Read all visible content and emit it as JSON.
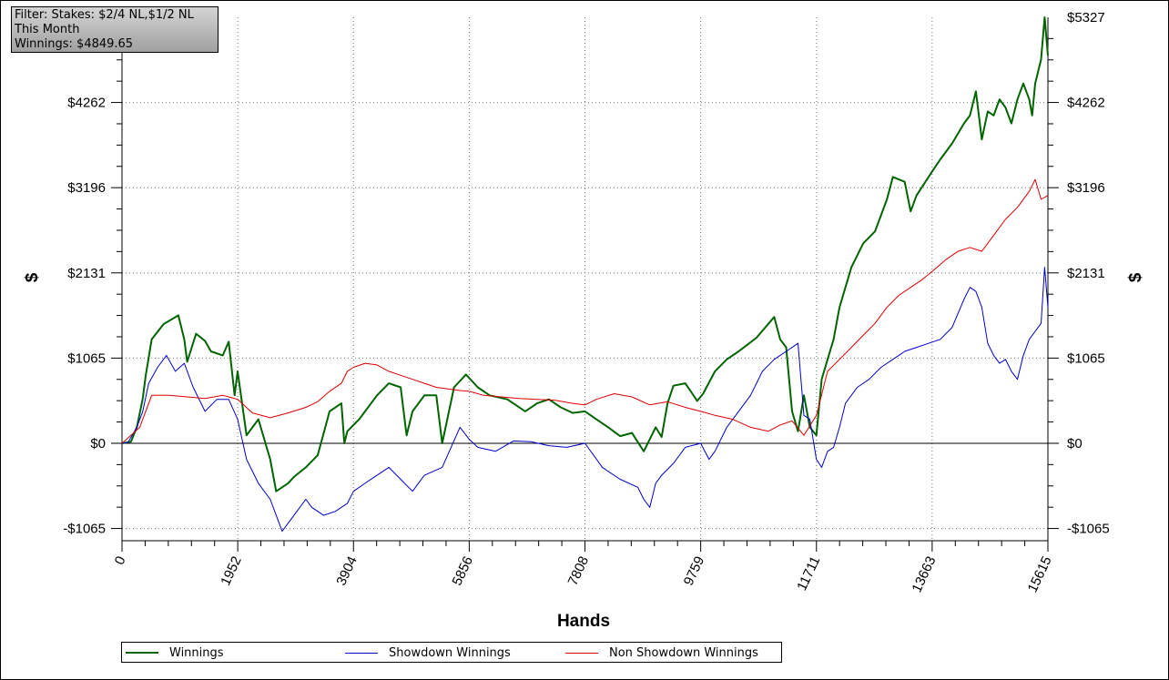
{
  "info_box": {
    "filter": "Filter: Stakes: $2/4 NL,$1/2 NL",
    "period": "This Month",
    "winnings": "Winnings: $4849.65"
  },
  "chart_data": {
    "type": "line",
    "xlabel": "Hands",
    "ylabel": "$",
    "ylabel_right": "$",
    "xlim": [
      0,
      15615
    ],
    "ylim": [
      -1065,
      5327
    ],
    "x_ticks": [
      0,
      1952,
      3904,
      5856,
      7808,
      9759,
      11711,
      13663,
      15615
    ],
    "y_ticks": [
      -1065,
      0,
      1065,
      2131,
      3196,
      4262,
      5327
    ],
    "y_tick_labels": [
      "-$1065",
      "$0",
      "$1065",
      "$2131",
      "$3196",
      "$4262",
      "$5327"
    ],
    "grid": true,
    "legend_position": "bottom",
    "series": [
      {
        "name": "Winnings",
        "color": "#006400",
        "x": [
          0,
          150,
          250,
          350,
          400,
          500,
          700,
          950,
          1050,
          1100,
          1250,
          1400,
          1500,
          1700,
          1800,
          1900,
          1950,
          2100,
          2300,
          2500,
          2600,
          2800,
          2900,
          3100,
          3300,
          3500,
          3700,
          3750,
          3800,
          4000,
          4300,
          4500,
          4700,
          4800,
          4900,
          5100,
          5300,
          5400,
          5600,
          5800,
          6000,
          6200,
          6500,
          6800,
          7000,
          7200,
          7400,
          7600,
          7808,
          8000,
          8200,
          8400,
          8600,
          8800,
          9000,
          9100,
          9200,
          9300,
          9500,
          9700,
          9800,
          10000,
          10200,
          10400,
          10700,
          11000,
          11100,
          11200,
          11300,
          11400,
          11500,
          11600,
          11711,
          11800,
          11900,
          12000,
          12100,
          12300,
          12500,
          12700,
          12900,
          13000,
          13200,
          13300,
          13400,
          13663,
          13800,
          14000,
          14200,
          14300,
          14400,
          14500,
          14600,
          14700,
          14800,
          14900,
          15000,
          15100,
          15200,
          15300,
          15350,
          15400,
          15500,
          15560,
          15615
        ],
        "values": [
          0,
          20,
          200,
          560,
          850,
          1300,
          1490,
          1600,
          1300,
          1020,
          1370,
          1280,
          1150,
          1100,
          1270,
          600,
          900,
          100,
          300,
          -200,
          -600,
          -500,
          -420,
          -300,
          -150,
          400,
          500,
          0,
          150,
          300,
          600,
          750,
          700,
          100,
          400,
          600,
          600,
          0,
          700,
          860,
          700,
          600,
          550,
          400,
          500,
          550,
          450,
          380,
          400,
          300,
          200,
          90,
          130,
          -100,
          200,
          80,
          500,
          720,
          750,
          530,
          620,
          900,
          1050,
          1150,
          1320,
          1580,
          1300,
          1200,
          400,
          150,
          600,
          200,
          100,
          800,
          1050,
          1300,
          1700,
          2200,
          2500,
          2650,
          3050,
          3330,
          3270,
          2900,
          3100,
          3400,
          3550,
          3750,
          4000,
          4100,
          4400,
          3800,
          4150,
          4100,
          4300,
          4200,
          4000,
          4300,
          4500,
          4300,
          4100,
          4500,
          4800,
          5327,
          4849.65
        ]
      },
      {
        "name": "Showdown Winnings",
        "color": "#0000cd",
        "x": [
          0,
          100,
          250,
          350,
          450,
          600,
          750,
          900,
          1050,
          1200,
          1400,
          1600,
          1800,
          1950,
          2100,
          2300,
          2500,
          2700,
          2900,
          3100,
          3200,
          3400,
          3600,
          3800,
          3904,
          4100,
          4300,
          4500,
          4700,
          4900,
          5100,
          5400,
          5700,
          5856,
          6000,
          6300,
          6600,
          6900,
          7200,
          7500,
          7808,
          8100,
          8400,
          8700,
          8800,
          8900,
          9000,
          9100,
          9300,
          9500,
          9759,
          9900,
          10000,
          10200,
          10400,
          10600,
          10800,
          11000,
          11200,
          11400,
          11500,
          11600,
          11711,
          11800,
          11900,
          12000,
          12100,
          12200,
          12400,
          12600,
          12800,
          13000,
          13200,
          13400,
          13600,
          13800,
          14000,
          14200,
          14300,
          14400,
          14500,
          14600,
          14700,
          14800,
          14900,
          15000,
          15100,
          15200,
          15300,
          15400,
          15500,
          15560,
          15615
        ],
        "values": [
          0,
          10,
          200,
          400,
          750,
          950,
          1100,
          900,
          1000,
          700,
          400,
          550,
          550,
          300,
          -200,
          -500,
          -700,
          -1100,
          -900,
          -700,
          -800,
          -900,
          -850,
          -750,
          -600,
          -500,
          -400,
          -300,
          -450,
          -600,
          -400,
          -300,
          200,
          50,
          -50,
          -100,
          30,
          20,
          -30,
          -50,
          0,
          -300,
          -450,
          -550,
          -700,
          -800,
          -500,
          -400,
          -250,
          -50,
          0,
          -200,
          -100,
          200,
          400,
          600,
          900,
          1050,
          1150,
          1250,
          350,
          300,
          -200,
          -300,
          -100,
          -50,
          200,
          500,
          700,
          800,
          950,
          1050,
          1150,
          1200,
          1250,
          1300,
          1450,
          1800,
          1950,
          1900,
          1700,
          1250,
          1100,
          1000,
          1050,
          900,
          800,
          1100,
          1300,
          1400,
          1500,
          2200,
          1700
        ]
      },
      {
        "name": "Non Showdown Winnings",
        "color": "#dd0000",
        "x": [
          0,
          150,
          300,
          500,
          800,
          1100,
          1400,
          1700,
          1952,
          2200,
          2500,
          2800,
          3100,
          3300,
          3500,
          3700,
          3800,
          3904,
          4100,
          4300,
          4500,
          4700,
          4900,
          5100,
          5300,
          5500,
          5700,
          5856,
          6100,
          6400,
          6700,
          7000,
          7300,
          7600,
          7808,
          8000,
          8300,
          8600,
          8900,
          9200,
          9500,
          9759,
          10000,
          10300,
          10600,
          10900,
          11100,
          11300,
          11500,
          11711,
          11900,
          12100,
          12300,
          12500,
          12700,
          12900,
          13100,
          13300,
          13500,
          13663,
          13900,
          14100,
          14300,
          14500,
          14700,
          14900,
          15100,
          15300,
          15400,
          15500,
          15615
        ],
        "values": [
          0,
          100,
          200,
          600,
          600,
          580,
          560,
          600,
          550,
          380,
          320,
          380,
          450,
          520,
          650,
          750,
          900,
          950,
          1000,
          980,
          900,
          850,
          800,
          750,
          700,
          680,
          660,
          650,
          600,
          580,
          560,
          550,
          540,
          500,
          480,
          550,
          620,
          580,
          480,
          520,
          450,
          400,
          350,
          300,
          200,
          150,
          230,
          280,
          100,
          350,
          900,
          1050,
          1200,
          1350,
          1500,
          1700,
          1850,
          1950,
          2050,
          2150,
          2300,
          2400,
          2450,
          2400,
          2600,
          2800,
          2950,
          3150,
          3300,
          3050,
          3100
        ]
      }
    ]
  }
}
